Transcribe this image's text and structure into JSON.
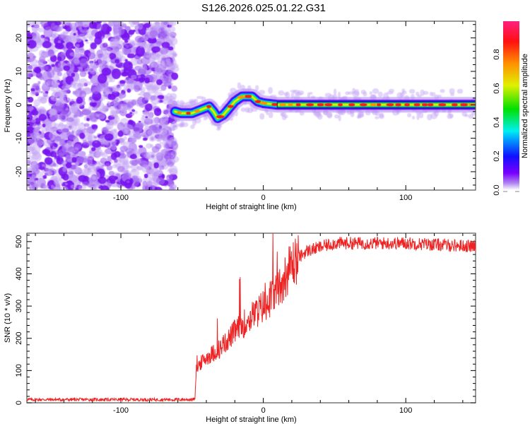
{
  "title": "S126.2026.025.01.22.G31",
  "chart_data": [
    {
      "type": "heatmap",
      "xlabel": "Height of straight line (km)",
      "ylabel": "Frequency (Hz)",
      "xlim": [
        -166,
        149
      ],
      "ylim": [
        -25.5,
        25
      ],
      "xticks": [
        -100,
        0,
        100
      ],
      "yticks": [
        -20,
        -10,
        0,
        10,
        20
      ],
      "noise_region_x": [
        -166,
        -62
      ],
      "ridge": {
        "x": [
          -62,
          -58,
          -50,
          -44,
          -38,
          -35,
          -32,
          -28,
          -24,
          -20,
          -15,
          -8,
          -4,
          0,
          10,
          150
        ],
        "y": [
          -2,
          -2.5,
          -2.5,
          -1.5,
          -0.5,
          -2,
          -4,
          -3,
          -1,
          1,
          2.5,
          2.5,
          1,
          0.5,
          0,
          0
        ]
      },
      "colorbar": {
        "label": "Normalized spectral amplitude",
        "range": [
          0,
          1
        ],
        "ticks": [
          "0.0",
          "0.2",
          "0.4",
          "0.6",
          "0.8"
        ]
      }
    },
    {
      "type": "line",
      "xlabel": "Height of straight line (km)",
      "ylabel": "SNR (10 * v/v)",
      "xlim": [
        -166,
        149
      ],
      "ylim": [
        0,
        526
      ],
      "xticks": [
        -100,
        0,
        100
      ],
      "yticks": [
        0,
        100,
        200,
        300,
        400,
        500
      ],
      "series": [
        {
          "name": "SNR",
          "color": "#ee2222",
          "x": [
            -166,
            -50,
            -48,
            -47,
            -40,
            -30,
            -20,
            -10,
            0,
            10,
            20,
            30,
            50,
            100,
            150
          ],
          "y": [
            10,
            10,
            12,
            110,
            140,
            170,
            220,
            260,
            300,
            350,
            430,
            470,
            495,
            495,
            485
          ]
        }
      ]
    }
  ]
}
